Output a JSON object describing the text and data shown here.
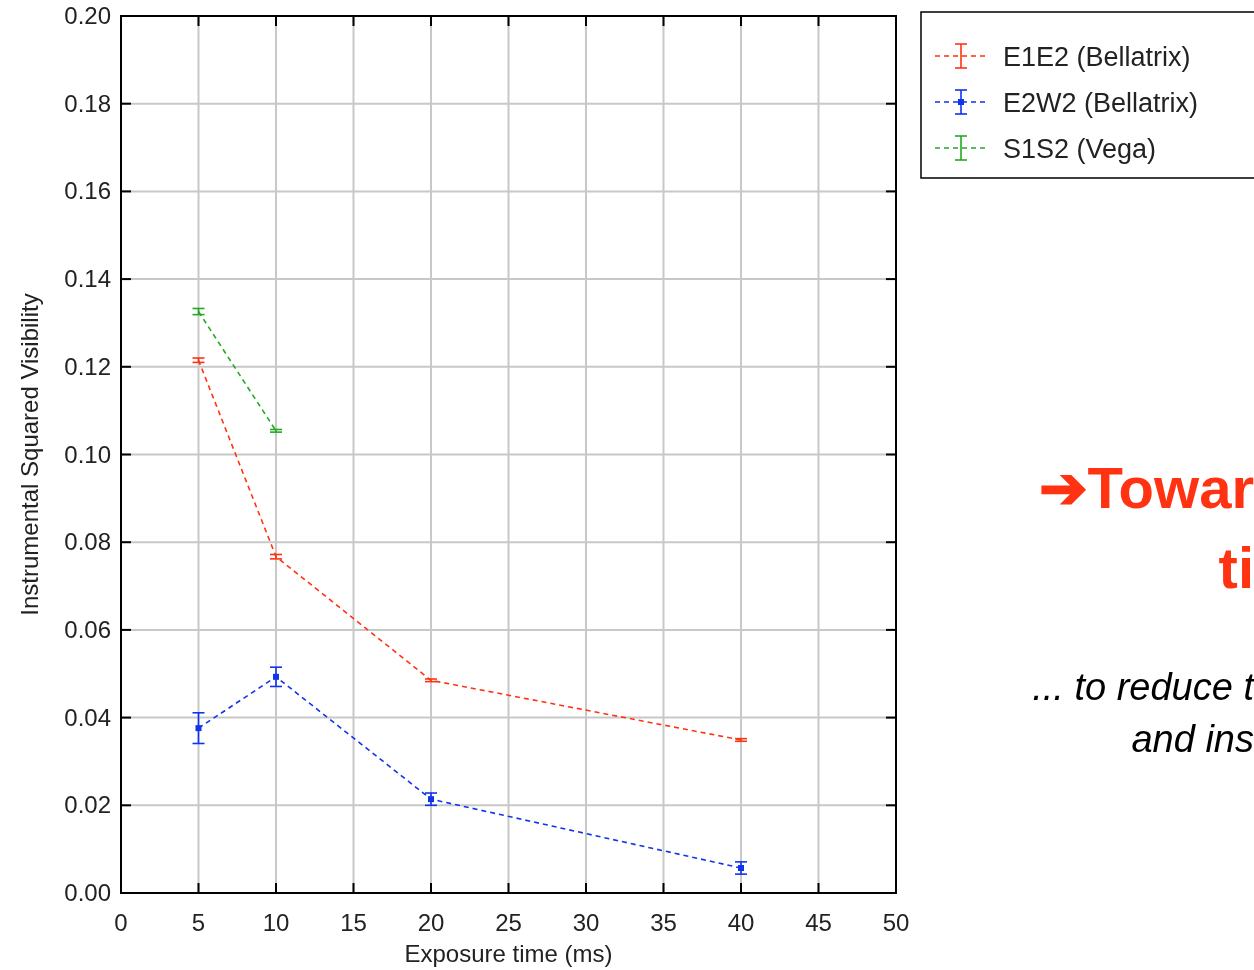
{
  "chart_data": {
    "type": "line",
    "xlabel": "Exposure time (ms)",
    "ylabel": "Instrumental Squared Visibility",
    "xlim": [
      0,
      50
    ],
    "xticks": [
      0,
      5,
      10,
      15,
      20,
      25,
      30,
      35,
      40,
      45,
      50
    ],
    "ylim": [
      0,
      0.2
    ],
    "yticks": [
      {
        "value": 0,
        "label": "0.00"
      },
      {
        "value": 0.02,
        "label": "0.02"
      },
      {
        "value": 0.04,
        "label": "0.04"
      },
      {
        "value": 0.06,
        "label": "0.06"
      },
      {
        "value": 0.08,
        "label": "0.08"
      },
      {
        "value": 0.1,
        "label": "0.10"
      },
      {
        "value": 0.12,
        "label": "0.12"
      },
      {
        "value": 0.14,
        "label": "0.14"
      },
      {
        "value": 0.16,
        "label": "0.16"
      },
      {
        "value": 0.18,
        "label": "0.18"
      },
      {
        "value": 0.2,
        "label": "0.20"
      }
    ],
    "grid": true,
    "legend": "top right",
    "line_style": "dashed",
    "series": [
      {
        "name": "E1E2 (Bellatrix)",
        "color": "#ff3311",
        "marker": "none",
        "x": [
          5,
          10,
          20,
          40
        ],
        "values": [
          0.1215,
          0.0767,
          0.0485,
          0.0349
        ],
        "errors": [
          0.0005,
          0.0005,
          0.0003,
          0.0003
        ]
      },
      {
        "name": "E2W2 (Bellatrix)",
        "color": "#1133ee",
        "marker": "square",
        "x": [
          5,
          10,
          20,
          40
        ],
        "values": [
          0.0376,
          0.0493,
          0.0214,
          0.0057
        ],
        "errors": [
          0.0035,
          0.0022,
          0.0014,
          0.0014
        ]
      },
      {
        "name": "S1S2 (Vega)",
        "color": "#22aa22",
        "marker": "none",
        "x": [
          5,
          10
        ],
        "values": [
          0.1326,
          0.1054
        ],
        "errors": [
          0.0007,
          0.0003
        ]
      }
    ],
    "annotations": [
      "➔Towar",
      "ti",
      "... to reduce t",
      "and ins"
    ]
  }
}
